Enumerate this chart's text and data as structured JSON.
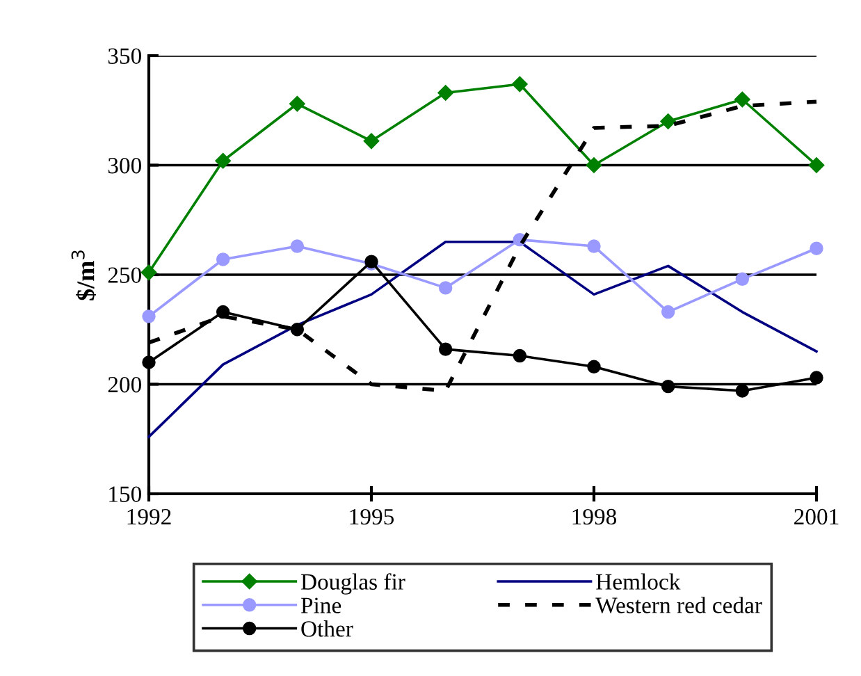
{
  "chart_data": {
    "type": "line",
    "ylabel": "$/m$^{3}$",
    "x": [
      1992,
      1993,
      1994,
      1995,
      1996,
      1997,
      1998,
      1999,
      2000,
      2001
    ],
    "xlim": [
      1992,
      2001
    ],
    "xticks": [
      1992,
      1995,
      1998,
      2001
    ],
    "ylim": [
      150,
      350
    ],
    "yticks": [
      150,
      200,
      250,
      300,
      350
    ],
    "grid": "y",
    "legend": "bottom",
    "series": [
      {
        "name": "Douglas fir",
        "color": "#008000",
        "marker": "diamond",
        "line_style": "solid",
        "values": [
          251,
          302,
          328,
          311,
          333,
          337,
          300,
          320,
          330,
          300
        ]
      },
      {
        "name": "Hemlock",
        "color": "#000080",
        "marker": "none",
        "line_style": "solid",
        "values": [
          176,
          209,
          227,
          241,
          265,
          265,
          241,
          254,
          233,
          215
        ]
      },
      {
        "name": "Pine",
        "color": "#9999ff",
        "marker": "circle",
        "line_style": "solid",
        "values": [
          231,
          257,
          263,
          255,
          244,
          266,
          263,
          233,
          248,
          262
        ]
      },
      {
        "name": "Western red cedar",
        "color": "#000000",
        "marker": "none",
        "line_style": "dashed",
        "values": [
          219,
          231,
          225,
          200,
          197,
          263,
          317,
          318,
          327,
          329
        ]
      },
      {
        "name": "Other",
        "color": "#000000",
        "marker": "circle",
        "line_style": "solid",
        "values": [
          210,
          233,
          225,
          256,
          216,
          213,
          208,
          199,
          197,
          203
        ]
      }
    ]
  }
}
